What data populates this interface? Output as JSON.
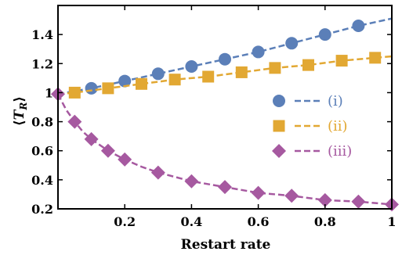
{
  "chart_data": {
    "type": "line",
    "title": "",
    "xlabel": "Restart rate",
    "ylabel": "⟨T_R⟩",
    "xlim": [
      0,
      1
    ],
    "ylim": [
      0.2,
      1.6
    ],
    "x_ticks": [
      0.2,
      0.4,
      0.6,
      0.8,
      1
    ],
    "x_tick_labels": [
      "0.2",
      "0.4",
      "0.6",
      "0.8",
      "1"
    ],
    "y_ticks": [
      0.2,
      0.4,
      0.6,
      0.8,
      1.0,
      1.2,
      1.4
    ],
    "y_tick_labels": [
      "0.2",
      "0.4",
      "0.6",
      "0.8",
      "1",
      "1.2",
      "1.4"
    ],
    "grid": false,
    "legend_position": "right",
    "series": [
      {
        "name": "(i)",
        "color": "#5b7fb8",
        "marker": "circle",
        "x": [
          0.1,
          0.2,
          0.3,
          0.4,
          0.5,
          0.6,
          0.7,
          0.8,
          0.9
        ],
        "y": [
          1.03,
          1.08,
          1.13,
          1.18,
          1.23,
          1.28,
          1.34,
          1.4,
          1.46
        ],
        "curve_x": [
          0,
          0.1,
          0.2,
          0.3,
          0.4,
          0.5,
          0.6,
          0.7,
          0.8,
          0.9,
          1.0
        ],
        "curve_y": [
          0.99,
          1.03,
          1.08,
          1.13,
          1.18,
          1.23,
          1.28,
          1.34,
          1.4,
          1.46,
          1.51
        ]
      },
      {
        "name": "(ii)",
        "color": "#e2a833",
        "marker": "square",
        "x": [
          0.05,
          0.15,
          0.25,
          0.35,
          0.45,
          0.55,
          0.65,
          0.75,
          0.85,
          0.95
        ],
        "y": [
          1.0,
          1.03,
          1.06,
          1.09,
          1.11,
          1.14,
          1.17,
          1.19,
          1.22,
          1.24
        ],
        "curve_x": [
          0,
          0.05,
          0.15,
          0.25,
          0.35,
          0.45,
          0.55,
          0.65,
          0.75,
          0.85,
          0.95,
          1.0
        ],
        "curve_y": [
          0.99,
          1.0,
          1.03,
          1.06,
          1.09,
          1.11,
          1.14,
          1.17,
          1.19,
          1.22,
          1.24,
          1.25
        ]
      },
      {
        "name": "(iii)",
        "color": "#a659a0",
        "marker": "diamond",
        "x": [
          0,
          0.05,
          0.1,
          0.15,
          0.2,
          0.3,
          0.4,
          0.5,
          0.6,
          0.7,
          0.8,
          0.9,
          1.0
        ],
        "y": [
          0.99,
          0.8,
          0.68,
          0.6,
          0.54,
          0.45,
          0.39,
          0.35,
          0.31,
          0.29,
          0.26,
          0.25,
          0.23
        ],
        "curve_x": [
          0,
          0.025,
          0.05,
          0.075,
          0.1,
          0.15,
          0.2,
          0.25,
          0.3,
          0.4,
          0.5,
          0.6,
          0.7,
          0.8,
          0.9,
          1.0
        ],
        "curve_y": [
          0.99,
          0.88,
          0.8,
          0.73,
          0.68,
          0.6,
          0.54,
          0.49,
          0.45,
          0.39,
          0.35,
          0.31,
          0.29,
          0.26,
          0.25,
          0.23
        ]
      }
    ]
  }
}
